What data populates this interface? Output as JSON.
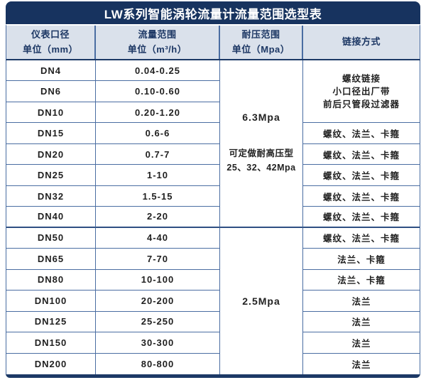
{
  "title": "LW系列智能涡轮流量计流量范围选型表",
  "colors": {
    "title_bar_bg": "#17335f",
    "header_bg": "#dae1eb",
    "grid_border": "#4a6da2",
    "separator_dark": "#1c3966"
  },
  "header": {
    "diameter": {
      "line1": "仪表口径",
      "line2": "单位（mm）"
    },
    "flow": {
      "line1": "流量范围",
      "line2": "单位（m³/h）"
    },
    "pressure": {
      "line1": "耐压范围",
      "line2": "单位（Mpa）"
    },
    "connection": {
      "line1": "链接方式"
    }
  },
  "rows": [
    {
      "dn": "DN4",
      "range": "0.04-0.25"
    },
    {
      "dn": "DN6",
      "range": "0.10-0.60"
    },
    {
      "dn": "DN10",
      "range": "0.20-1.20"
    },
    {
      "dn": "DN15",
      "range": "0.6-6"
    },
    {
      "dn": "DN20",
      "range": "0.7-7"
    },
    {
      "dn": "DN25",
      "range": "1-10"
    },
    {
      "dn": "DN32",
      "range": "1.5-15"
    },
    {
      "dn": "DN40",
      "range": "2-20"
    },
    {
      "dn": "DN50",
      "range": "4-40"
    },
    {
      "dn": "DN65",
      "range": "7-70"
    },
    {
      "dn": "DN80",
      "range": "10-100"
    },
    {
      "dn": "DN100",
      "range": "20-200"
    },
    {
      "dn": "DN125",
      "range": "25-250"
    },
    {
      "dn": "DN150",
      "range": "30-300"
    },
    {
      "dn": "DN200",
      "range": "80-800"
    }
  ],
  "pressure_groups": [
    {
      "value": "6.3Mpa",
      "note_line1": "可定做耐高压型",
      "note_line2": "25、32、42Mpa",
      "row_span": 8
    },
    {
      "value": "2.5Mpa",
      "row_span": 7
    }
  ],
  "connection_merged": {
    "line1": "螺纹链接",
    "line2": "小口径出厂带",
    "line3": "前后只管段过滤器",
    "row_span": 3
  },
  "connection_cells": [
    "螺纹、法兰、卡箍",
    "螺纹、法兰、卡箍",
    "螺纹、法兰、卡箍",
    "螺纹、法兰、卡箍",
    "螺纹、法兰、卡箍",
    "螺纹、法兰、卡箍",
    "法兰、卡箍",
    "法兰、卡箍",
    "法兰",
    "法兰",
    "法兰",
    "法兰"
  ]
}
